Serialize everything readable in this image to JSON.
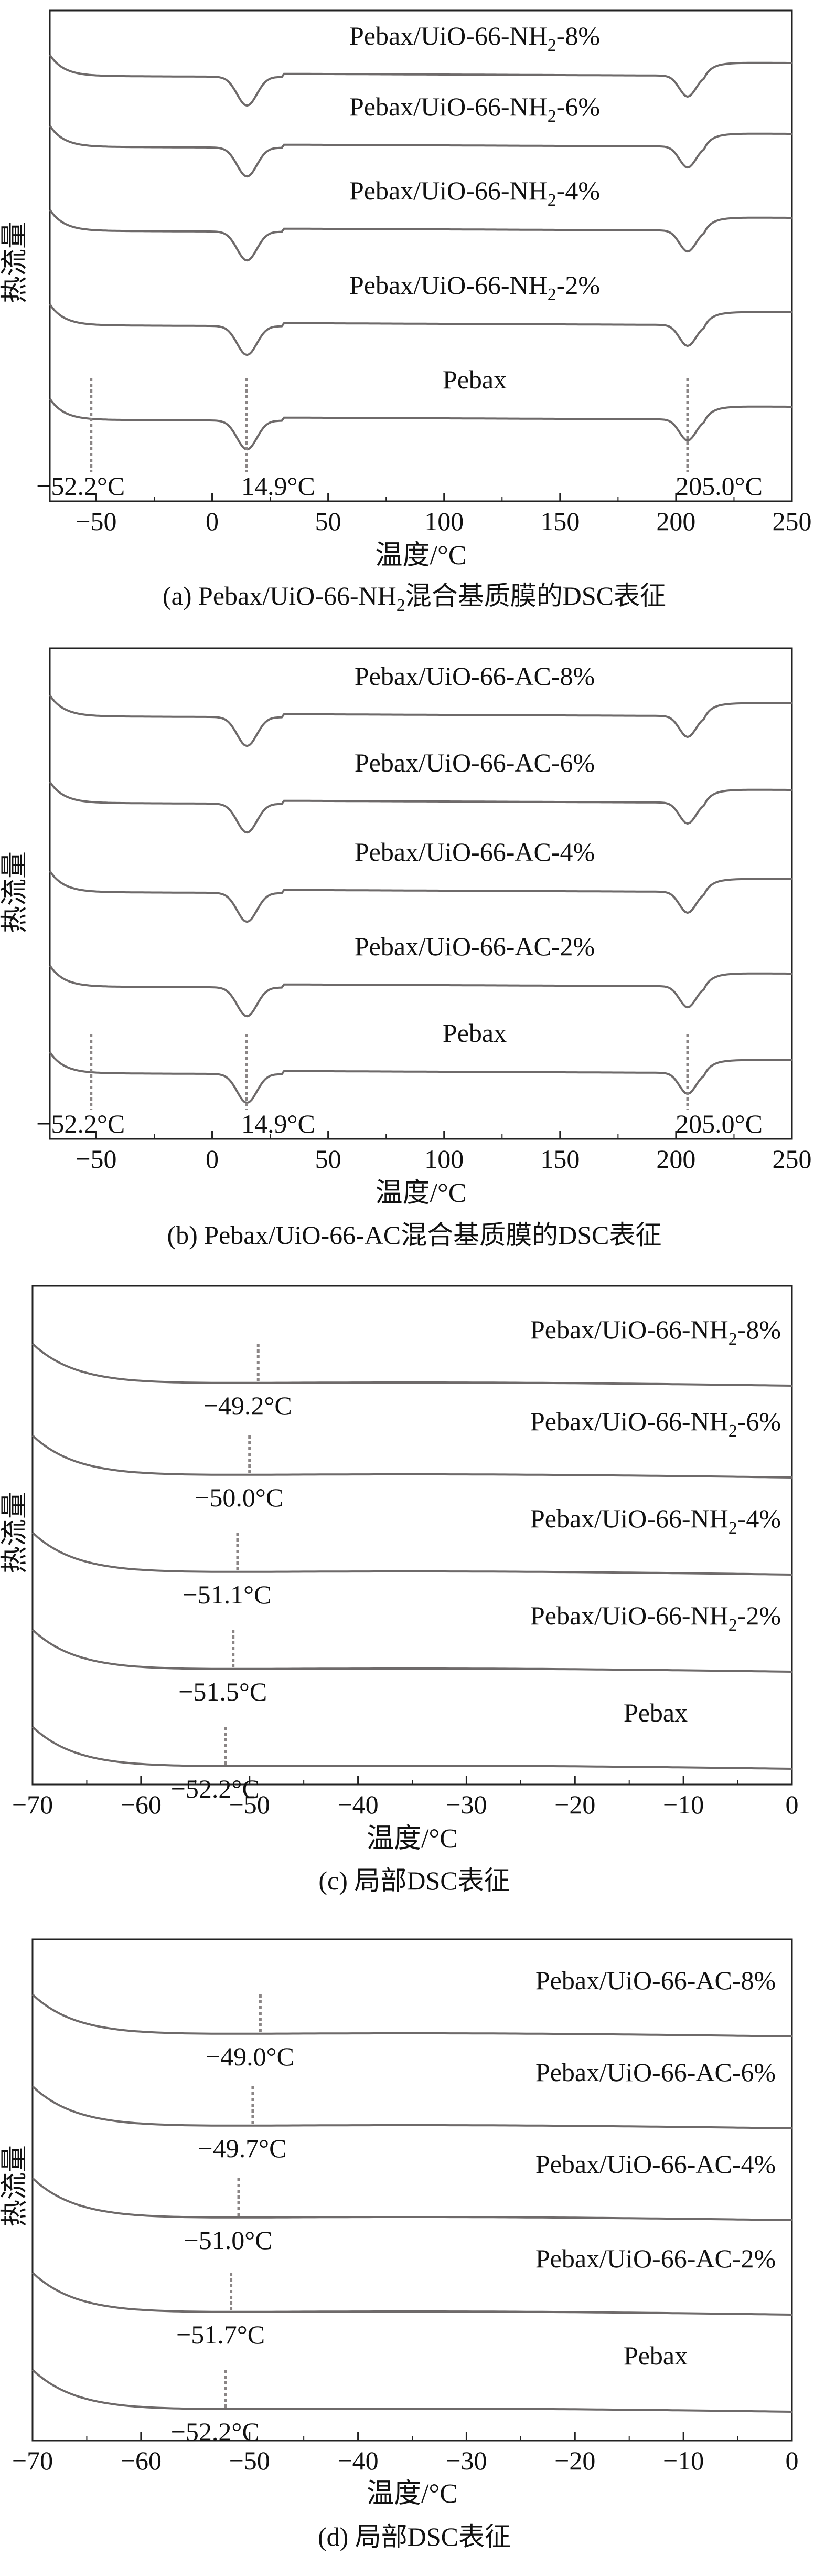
{
  "chart_data": [
    {
      "type": "line",
      "caption_main": "(a) Pebax/UiO-66-NH",
      "caption_sub": "2",
      "caption_tail": "混合基质膜的DSC表征",
      "xlabel": "温度/°C",
      "ylabel": "热流量",
      "xlim": [
        -70,
        250
      ],
      "xticks": [
        "−50",
        "0",
        "50",
        "100",
        "150",
        "200",
        "250"
      ],
      "series": [
        {
          "label_main": "Pebax/UiO-66-NH",
          "label_sub": "2",
          "label_tail": "-8%"
        },
        {
          "label_main": "Pebax/UiO-66-NH",
          "label_sub": "2",
          "label_tail": "-6%"
        },
        {
          "label_main": "Pebax/UiO-66-NH",
          "label_sub": "2",
          "label_tail": "-4%"
        },
        {
          "label_main": "Pebax/UiO-66-NH",
          "label_sub": "2",
          "label_tail": "-2%"
        },
        {
          "label_main": "Pebax",
          "label_sub": "",
          "label_tail": ""
        }
      ],
      "markers": [
        {
          "x": -52.2,
          "label": "−52.2°C"
        },
        {
          "x": 14.9,
          "label": "14.9°C"
        },
        {
          "x": 205.0,
          "label": "205.0°C"
        }
      ]
    },
    {
      "type": "line",
      "caption_main": "(b) Pebax/UiO-66-AC混合基质膜的DSC表征",
      "xlabel": "温度/°C",
      "ylabel": "热流量",
      "xlim": [
        -70,
        250
      ],
      "xticks": [
        "−50",
        "0",
        "50",
        "100",
        "150",
        "200",
        "250"
      ],
      "series": [
        {
          "label_main": "Pebax/UiO-66-AC-8%"
        },
        {
          "label_main": "Pebax/UiO-66-AC-6%"
        },
        {
          "label_main": "Pebax/UiO-66-AC-4%"
        },
        {
          "label_main": "Pebax/UiO-66-AC-2%"
        },
        {
          "label_main": "Pebax"
        }
      ],
      "markers": [
        {
          "x": -52.2,
          "label": "−52.2°C"
        },
        {
          "x": 14.9,
          "label": "14.9°C"
        },
        {
          "x": 205.0,
          "label": "205.0°C"
        }
      ]
    },
    {
      "type": "line",
      "caption_main": "(c) 局部DSC表征",
      "xlabel": "温度/°C",
      "ylabel": "热流量",
      "xlim": [
        -70,
        0
      ],
      "xticks": [
        "−70",
        "−60",
        "−50",
        "−40",
        "−30",
        "−20",
        "−10",
        "0"
      ],
      "series": [
        {
          "label_main": "Pebax/UiO-66-NH",
          "label_sub": "2",
          "label_tail": "-8%",
          "tg": -49.2,
          "tg_label": "−49.2°C"
        },
        {
          "label_main": "Pebax/UiO-66-NH",
          "label_sub": "2",
          "label_tail": "-6%",
          "tg": -50.0,
          "tg_label": "−50.0°C"
        },
        {
          "label_main": "Pebax/UiO-66-NH",
          "label_sub": "2",
          "label_tail": "-4%",
          "tg": -51.1,
          "tg_label": "−51.1°C"
        },
        {
          "label_main": "Pebax/UiO-66-NH",
          "label_sub": "2",
          "label_tail": "-2%",
          "tg": -51.5,
          "tg_label": "−51.5°C"
        },
        {
          "label_main": "Pebax",
          "label_sub": "",
          "label_tail": "",
          "tg": -52.2,
          "tg_label": "−52.2°C"
        }
      ]
    },
    {
      "type": "line",
      "caption_main": "(d) 局部DSC表征",
      "xlabel": "温度/°C",
      "ylabel": "热流量",
      "xlim": [
        -70,
        0
      ],
      "xticks": [
        "−70",
        "−60",
        "−50",
        "−40",
        "−30",
        "−20",
        "−10",
        "0"
      ],
      "series": [
        {
          "label_main": "Pebax/UiO-66-AC-8%",
          "tg": -49.0,
          "tg_label": "−49.0°C"
        },
        {
          "label_main": "Pebax/UiO-66-AC-6%",
          "tg": -49.7,
          "tg_label": "−49.7°C"
        },
        {
          "label_main": "Pebax/UiO-66-AC-4%",
          "tg": -51.0,
          "tg_label": "−51.0°C"
        },
        {
          "label_main": "Pebax/UiO-66-AC-2%",
          "tg": -51.7,
          "tg_label": "−51.7°C"
        },
        {
          "label_main": "Pebax",
          "tg": -52.2,
          "tg_label": "−52.2°C"
        }
      ]
    }
  ]
}
